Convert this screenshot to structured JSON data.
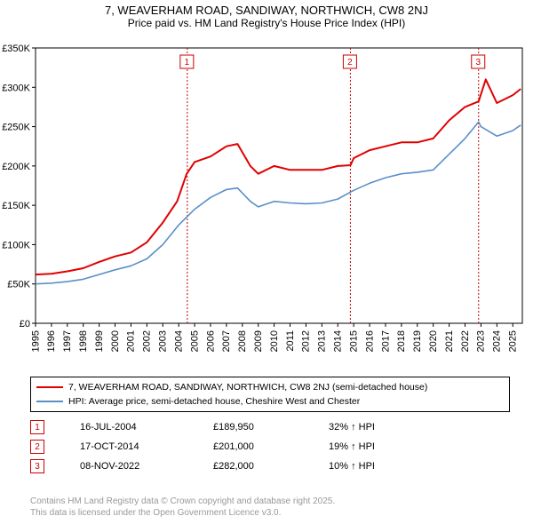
{
  "title": {
    "line1": "7, WEAVERHAM ROAD, SANDIWAY, NORTHWICH, CW8 2NJ",
    "line2": "Price paid vs. HM Land Registry's House Price Index (HPI)",
    "fontsize_line1": 13,
    "fontsize_line2": 12
  },
  "chart": {
    "type": "line",
    "background_color": "#ffffff",
    "plot_border_color": "#000000",
    "grid": false,
    "xlim": [
      1995,
      2025.6
    ],
    "ylim": [
      0,
      350000
    ],
    "ytick_step": 50000,
    "yticks": [
      "£0",
      "£50K",
      "£100K",
      "£150K",
      "£200K",
      "£250K",
      "£300K",
      "£350K"
    ],
    "xticks": [
      1995,
      1996,
      1997,
      1998,
      1999,
      2000,
      2001,
      2002,
      2003,
      2004,
      2005,
      2006,
      2007,
      2008,
      2009,
      2010,
      2011,
      2012,
      2013,
      2014,
      2015,
      2016,
      2017,
      2018,
      2019,
      2020,
      2021,
      2022,
      2023,
      2024,
      2025
    ],
    "xtick_rotation": -90,
    "tick_fontsize": 11,
    "series": [
      {
        "name": "property",
        "label": "7, WEAVERHAM ROAD, SANDIWAY, NORTHWICH, CW8 2NJ (semi-detached house)",
        "color": "#e00000",
        "line_width": 2,
        "x": [
          1995,
          1996,
          1997,
          1998,
          1999,
          2000,
          2001,
          2002,
          2003,
          2003.9,
          2004.5,
          2005,
          2006,
          2007,
          2007.7,
          2008.5,
          2009,
          2010,
          2011,
          2012,
          2013,
          2014,
          2014.8,
          2015,
          2016,
          2017,
          2018,
          2019,
          2020,
          2021,
          2022,
          2022.85,
          2023.3,
          2024,
          2025,
          2025.5
        ],
        "y": [
          62000,
          63000,
          66000,
          70000,
          78000,
          85000,
          90000,
          103000,
          128000,
          155000,
          189950,
          205000,
          212000,
          225000,
          228000,
          200000,
          190000,
          200000,
          195000,
          195000,
          195000,
          200000,
          201000,
          210000,
          220000,
          225000,
          230000,
          230000,
          235000,
          258000,
          275000,
          282000,
          310000,
          280000,
          290000,
          298000
        ]
      },
      {
        "name": "hpi",
        "label": "HPI: Average price, semi-detached house, Cheshire West and Chester",
        "color": "#5b8fc7",
        "line_width": 1.6,
        "x": [
          1995,
          1996,
          1997,
          1998,
          1999,
          2000,
          2001,
          2002,
          2003,
          2004,
          2005,
          2006,
          2007,
          2007.7,
          2008.5,
          2009,
          2010,
          2011,
          2012,
          2013,
          2014,
          2015,
          2016,
          2017,
          2018,
          2019,
          2020,
          2021,
          2022,
          2022.85,
          2023,
          2024,
          2025,
          2025.5
        ],
        "y": [
          50000,
          51000,
          53000,
          56000,
          62000,
          68000,
          73000,
          82000,
          100000,
          125000,
          145000,
          160000,
          170000,
          172000,
          155000,
          148000,
          155000,
          153000,
          152000,
          153000,
          158000,
          169000,
          178000,
          185000,
          190000,
          192000,
          195000,
          215000,
          235000,
          256000,
          250000,
          238000,
          245000,
          252000
        ]
      }
    ],
    "sale_markers": [
      {
        "n": "1",
        "x": 2004.54,
        "y_marker_top": 0.7
      },
      {
        "n": "2",
        "x": 2014.79,
        "y_marker_top": 0.7
      },
      {
        "n": "3",
        "x": 2022.85,
        "y_marker_top": 0.95
      }
    ],
    "marker_line_color": "#c00000",
    "marker_line_dash": "2,2"
  },
  "legend": {
    "items": [
      {
        "color": "#e00000",
        "label": "7, WEAVERHAM ROAD, SANDIWAY, NORTHWICH, CW8 2NJ (semi-detached house)"
      },
      {
        "color": "#5b8fc7",
        "label": "HPI: Average price, semi-detached house, Cheshire West and Chester"
      }
    ]
  },
  "sales_table": [
    {
      "n": "1",
      "date": "16-JUL-2004",
      "price": "£189,950",
      "diff": "32% ↑ HPI"
    },
    {
      "n": "2",
      "date": "17-OCT-2014",
      "price": "£201,000",
      "diff": "19% ↑ HPI"
    },
    {
      "n": "3",
      "date": "08-NOV-2022",
      "price": "£282,000",
      "diff": "10% ↑ HPI"
    }
  ],
  "footer": {
    "line1": "Contains HM Land Registry data © Crown copyright and database right 2025.",
    "line2": "This data is licensed under the Open Government Licence v3.0."
  }
}
